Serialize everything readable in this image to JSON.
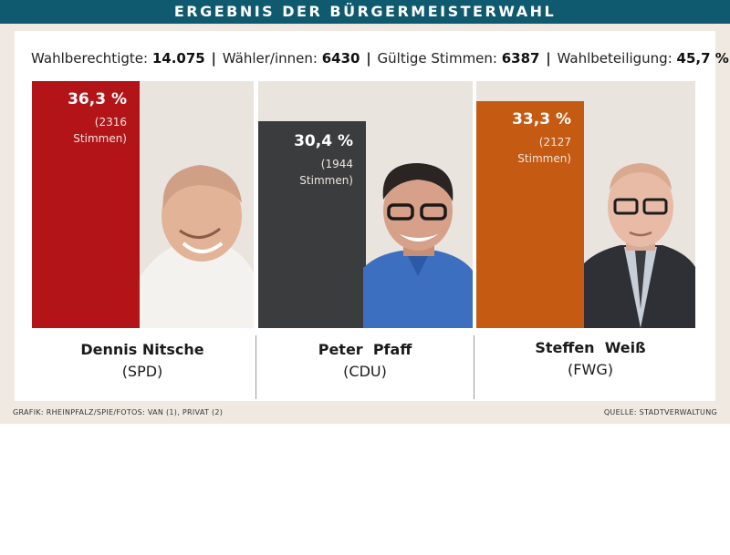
{
  "title": "ERGEBNIS DER BÜRGERMEISTERWAHL",
  "stats": {
    "eligible_label": "Wahlberechtigte:",
    "eligible_value": "14.075",
    "voters_label": "Wähler/innen:",
    "voters_value": "6430",
    "valid_label": "Gültige Stimmen:",
    "valid_value": "6387",
    "turnout_label": "Wahlbeteiligung:",
    "turnout_value": "45,7 %",
    "separator": "|"
  },
  "credit_left": "GRAFIK: RHEINPFALZ/SPIE/FOTOS: VAN (1), PRIVAT (2)",
  "credit_right": "QUELLE: STADTVERWALTUNG",
  "chart_data": {
    "type": "bar",
    "categories": [
      "Dennis Nitsche",
      "Peter  Pfaff",
      "Steffen  Weiß"
    ],
    "values": [
      36.3,
      30.4,
      33.3
    ],
    "value_labels": [
      "36,3 %",
      "30,4 %",
      "33,3 %"
    ],
    "votes": [
      2316,
      1944,
      2127
    ],
    "votes_line1": [
      "(2316",
      "(1944",
      "(2127"
    ],
    "votes_line2": [
      "Stimmen)",
      "Stimmen)",
      "Stimmen)"
    ],
    "parties": [
      "(SPD)",
      "(CDU)",
      "(FWG)"
    ],
    "colors": [
      "#b31418",
      "#3a3c3e",
      "#c55a12"
    ],
    "ylim": [
      0,
      36.3
    ],
    "xlabel": "",
    "ylabel": ""
  }
}
